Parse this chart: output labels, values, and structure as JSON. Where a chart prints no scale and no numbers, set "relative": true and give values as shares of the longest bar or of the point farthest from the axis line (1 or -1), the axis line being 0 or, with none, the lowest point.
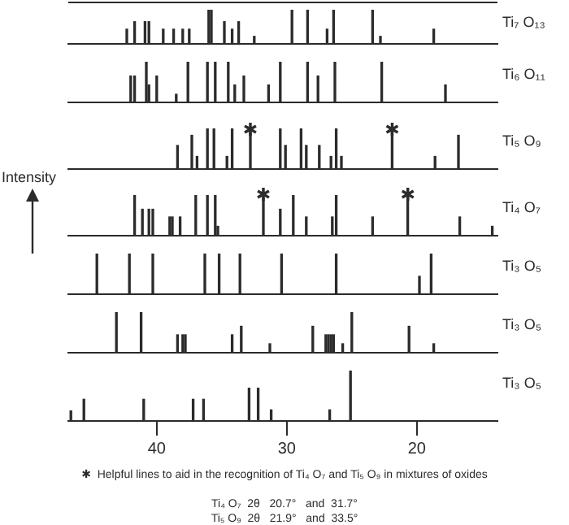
{
  "chart_data": [
    {
      "type": "bar",
      "relative": true,
      "xlim": [
        46.8,
        13.8
      ],
      "x": [
        42.3,
        41.7,
        40.9,
        40.6,
        39.5,
        38.7,
        38.0,
        37.5,
        36.0,
        35.8,
        34.8,
        34.2,
        33.7,
        32.5,
        29.6,
        28.4,
        26.9,
        26.4,
        23.4,
        22.8,
        18.7
      ],
      "series": [
        {
          "name": "Ti₇ O₁₃",
          "color": "#2b2b2b",
          "values": [
            0.43,
            0.65,
            0.65,
            0.65,
            0.43,
            0.43,
            0.43,
            0.43,
            1,
            1,
            0.65,
            0.43,
            0.65,
            0.22,
            1,
            1,
            0.43,
            1,
            1,
            0.22,
            0.43
          ]
        }
      ]
    },
    {
      "type": "bar",
      "relative": true,
      "xlim": [
        46.8,
        13.8
      ],
      "x": [
        42.0,
        41.7,
        40.8,
        40.6,
        40.0,
        38.5,
        37.6,
        36.1,
        35.5,
        34.5,
        34.0,
        33.3,
        31.4,
        30.5,
        28.4,
        27.6,
        26.3,
        22.7,
        17.8
      ],
      "series": [
        {
          "name": "Ti₆ O₁₁",
          "color": "#2b2b2b",
          "values": [
            0.65,
            0.65,
            1,
            0.43,
            0.65,
            0.2,
            1,
            1,
            1,
            1,
            0.43,
            0.65,
            0.43,
            1,
            1,
            0.65,
            1,
            1,
            0.43
          ]
        }
      ]
    },
    {
      "type": "bar",
      "relative": true,
      "xlim": [
        46.8,
        13.8
      ],
      "x": [
        38.4,
        37.3,
        36.9,
        36.1,
        35.6,
        34.6,
        34.2,
        32.8,
        30.5,
        30.1,
        28.9,
        28.5,
        27.5,
        26.6,
        26.2,
        25.8,
        21.9,
        18.6,
        16.8
      ],
      "series": [
        {
          "name": "Ti₅ O₉",
          "color": "#2b2b2b",
          "values": [
            0.58,
            0.83,
            0.31,
            1,
            1,
            0.31,
            1,
            0.9,
            1,
            0.58,
            1,
            0.58,
            0.58,
            0.31,
            1,
            0.31,
            0.9,
            0.31,
            0.83
          ]
        }
      ],
      "annotations": [
        {
          "text": "✱",
          "x": 32.8,
          "y": 0.9
        },
        {
          "text": "✱",
          "x": 21.9,
          "y": 0.9
        }
      ]
    },
    {
      "type": "bar",
      "relative": true,
      "xlim": [
        46.8,
        13.8
      ],
      "ylabel": "Intensity",
      "x": [
        41.7,
        41.1,
        40.6,
        40.3,
        39.0,
        38.8,
        38.2,
        37.0,
        36.1,
        35.5,
        35.3,
        31.8,
        30.5,
        29.5,
        28.5,
        26.5,
        26.2,
        23.4,
        20.7,
        16.7,
        14.2
      ],
      "series": [
        {
          "name": "Ti₄ O₇",
          "color": "#2b2b2b",
          "values": [
            1,
            0.65,
            0.65,
            0.65,
            0.46,
            0.46,
            0.46,
            1,
            1,
            1,
            0.23,
            0.93,
            0.65,
            1,
            0.46,
            0.46,
            1,
            0.46,
            0.93,
            0.46,
            0.23
          ]
        }
      ],
      "annotations": [
        {
          "text": "✱",
          "x": 31.8,
          "y": 0.93
        },
        {
          "text": "✱",
          "x": 20.7,
          "y": 0.93
        }
      ]
    },
    {
      "type": "bar",
      "relative": true,
      "xlim": [
        46.8,
        13.8
      ],
      "x": [
        44.6,
        42.1,
        40.3,
        36.3,
        35.2,
        33.6,
        30.4,
        26.2,
        19.8,
        18.9
      ],
      "series": [
        {
          "name": "Ti₃ O₅",
          "color": "#2b2b2b",
          "values": [
            1,
            1,
            1,
            1,
            1,
            1,
            1,
            1,
            0.44,
            1
          ]
        }
      ]
    },
    {
      "type": "bar",
      "relative": true,
      "xlim": [
        46.8,
        13.8
      ],
      "x": [
        43.1,
        41.2,
        38.4,
        38.0,
        37.8,
        34.2,
        33.5,
        31.3,
        28.0,
        27.0,
        26.8,
        26.6,
        26.4,
        25.7,
        25.0,
        20.6,
        18.7
      ],
      "series": [
        {
          "name": "Ti₃ O₅",
          "color": "#2b2b2b",
          "values": [
            1,
            1,
            0.44,
            0.44,
            0.44,
            0.44,
            0.65,
            0.22,
            0.65,
            0.44,
            0.44,
            0.44,
            0.44,
            0.22,
            1,
            0.65,
            0.22
          ]
        }
      ]
    },
    {
      "type": "bar",
      "relative": true,
      "xlim": [
        46.8,
        13.8
      ],
      "xticks": [
        40,
        30,
        20
      ],
      "x": [
        46.6,
        45.6,
        41.0,
        37.2,
        36.4,
        32.9,
        32.2,
        31.2,
        26.7,
        25.1
      ],
      "series": [
        {
          "name": "Ti₃ O₅",
          "color": "#2b2b2b",
          "values": [
            0.2,
            0.43,
            0.43,
            0.43,
            0.43,
            0.65,
            0.65,
            0.22,
            0.22,
            1
          ]
        }
      ],
      "annotations": [
        "✱  Helpful lines to aid in the recognition of Ti₄ O₇ and Ti₅ O₉ in mixtures of oxides",
        "Ti₄ O₇  2θ   20.7°   and  31.7°",
        "Ti₅ O₉  2θ   21.9°   and  33.5°"
      ]
    }
  ]
}
